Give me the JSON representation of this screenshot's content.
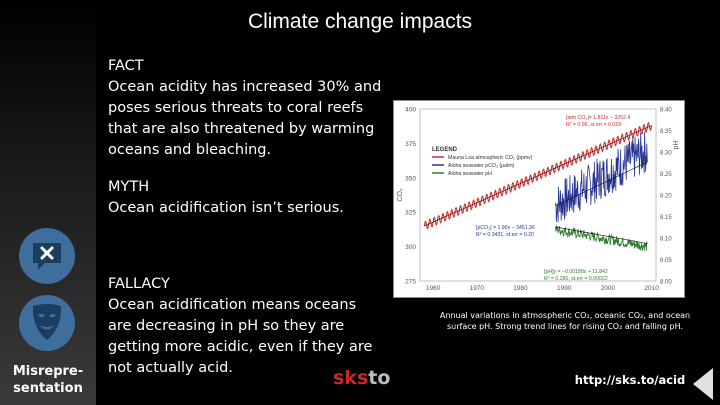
{
  "slide": {
    "title": "Climate change impacts",
    "fact": {
      "head": "FACT",
      "body": "Ocean acidity has increased 30% and poses serious threats to coral reefs that are also threatened by warming oceans and bleaching."
    },
    "myth": {
      "head": "MYTH",
      "body": "Ocean acidification isn’t serious."
    },
    "fallacy": {
      "head": "FALLACY",
      "body": "Ocean acidification means oceans are decreasing in pH so they are getting more acidic, even if they are not actually acid."
    },
    "sidebar": {
      "icons": [
        "speech-bubble-x-icon",
        "mask-icon"
      ],
      "label": "Misrepre-\nsentation"
    },
    "caption_line1": "Annual variations in atmospheric CO₂, oceanic CO₂, and ocean",
    "caption_line2": "surface pH. Strong trend lines for rising CO₂ and falling pH.",
    "link": "http://sks.to/acid",
    "logo": {
      "part1": "sk",
      "dot": "s",
      "part2": "to"
    },
    "colors": {
      "accent": "#3d6e9c",
      "brand_red": "#c62828"
    }
  },
  "chart_data": {
    "type": "line",
    "xlabel": "",
    "ylabel_left": "CO₂",
    "ylabel_right": "pH",
    "x_ticks": [
      "1960",
      "1970",
      "1980",
      "1990",
      "2000",
      "2010"
    ],
    "x_range": [
      1957,
      2011
    ],
    "y_left_ticks": [
      "400",
      "375",
      "350",
      "325",
      "300",
      "275"
    ],
    "y_left_range": [
      275,
      400
    ],
    "y_right_ticks": [
      "8.40",
      "8.35",
      "8.30",
      "8.25",
      "8.20",
      "8.15",
      "8.10",
      "8.05",
      "8.00"
    ],
    "y_right_range": [
      8.0,
      8.4
    ],
    "legend_title": "LEGEND",
    "legend": [
      {
        "name": "Mauna Loa atmospheric CO₂ (ppmv)",
        "color": "#d32f2f"
      },
      {
        "name": "Aloha seawater pCO₂ (µatm)",
        "color": "#283593"
      },
      {
        "name": "Aloha seawater pH",
        "color": "#2e7d32"
      }
    ],
    "annotations": {
      "red_fit_1": "[atm CO₂]= 1.811x − 3252.4",
      "red_fit_2": "R² = 0.96, st.err = 0.029",
      "blue_fit_1": "[pCO₂] = 1.90x − 3451.36",
      "blue_fit_2": "R² = 0.3431, st.err = 0.20",
      "green_fit_1": "[pH]y = −0.00188x + 11.842",
      "green_fit_2": "R² = 0.280, st.err = 0.00022"
    },
    "series": [
      {
        "name": "Mauna Loa atmospheric CO₂ (ppmv)",
        "axis": "left",
        "start": 1958,
        "end": 2010,
        "start_value": 315,
        "end_value": 388,
        "seasonal_amp": 3
      },
      {
        "name": "Aloha seawater pCO₂ (µatm)",
        "axis": "left",
        "start": 1988,
        "end": 2009,
        "start_value": 330,
        "end_value": 370,
        "noise": 16
      },
      {
        "name": "Aloha seawater pH",
        "axis": "right",
        "start": 1988,
        "end": 2009,
        "start_value": 8.12,
        "end_value": 8.08,
        "noise": 0.012
      }
    ]
  }
}
